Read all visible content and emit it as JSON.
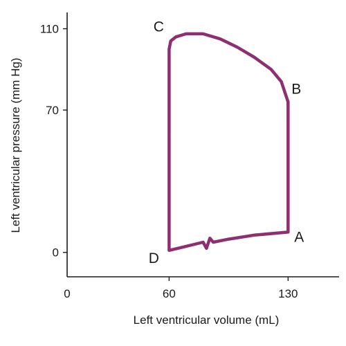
{
  "chart_data": {
    "type": "line",
    "xlabel": "Left ventricular volume (mL)",
    "ylabel": "Left ventricular pressure (mm Hg)",
    "x_ticks": [
      0,
      60,
      130
    ],
    "y_ticks": [
      0,
      70,
      110
    ],
    "xlim": [
      0,
      160
    ],
    "ylim": [
      -12,
      118
    ],
    "grid": false,
    "loop_color": "#8e2f72",
    "axis_color": "#1a1a1a",
    "points": [
      {
        "label": "A",
        "x": 130,
        "y": 10
      },
      {
        "label": "B",
        "x": 130,
        "y": 74
      },
      {
        "label": "C",
        "x": 62,
        "y": 106
      },
      {
        "label": "D",
        "x": 60,
        "y": 1
      }
    ],
    "series": [
      {
        "x": [
          130,
          130,
          126,
          120,
          110,
          100,
          90,
          80,
          70,
          64,
          61,
          60,
          60,
          60,
          60,
          65,
          75,
          80,
          82,
          84,
          86,
          95,
          110,
          130
        ],
        "y": [
          10,
          74,
          84,
          90,
          96,
          101,
          105,
          107.5,
          107.5,
          106,
          104,
          100,
          60,
          20,
          1,
          2,
          4,
          5,
          2,
          7,
          5,
          6.5,
          8.5,
          10
        ]
      }
    ]
  }
}
